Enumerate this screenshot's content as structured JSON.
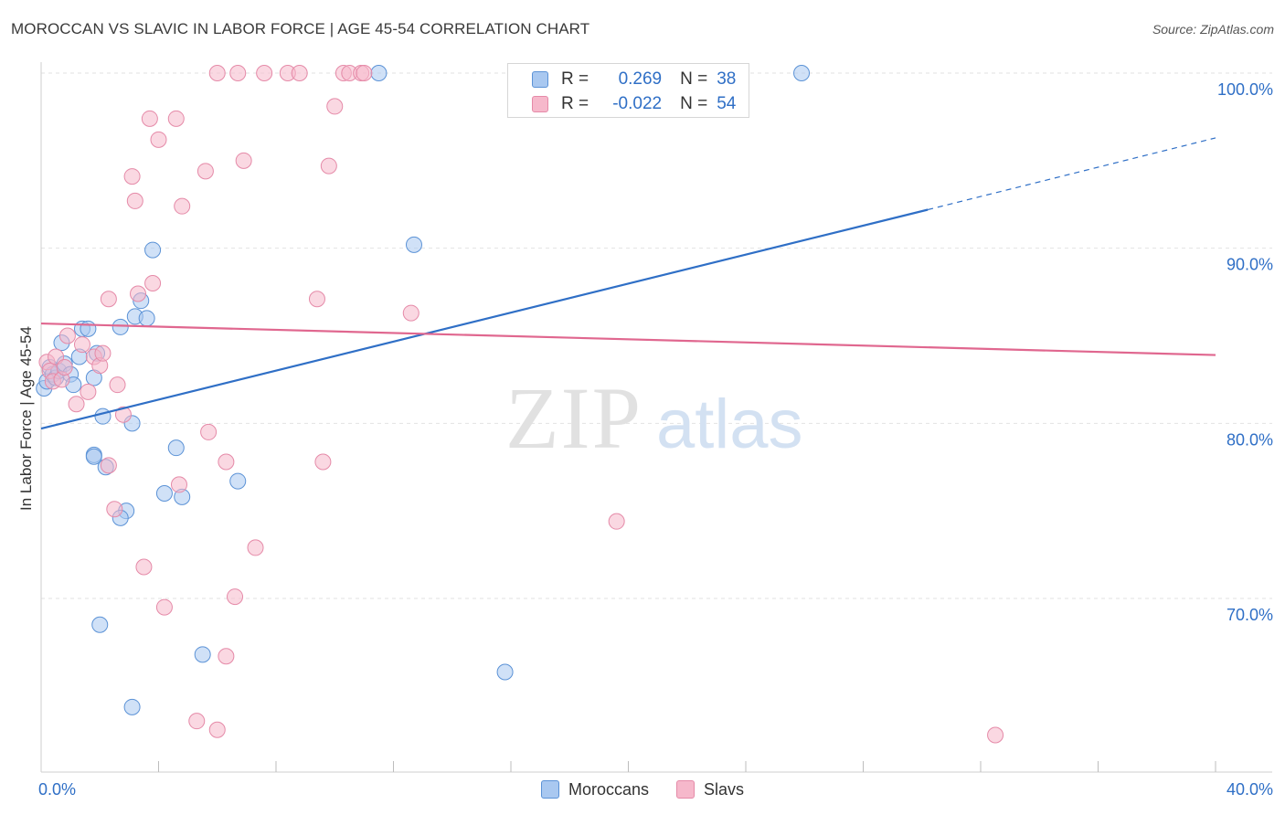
{
  "header": {
    "title": "MOROCCAN VS SLAVIC IN LABOR FORCE | AGE 45-54 CORRELATION CHART",
    "source": "Source: ZipAtlas.com"
  },
  "watermark": {
    "zip": "ZIP",
    "atlas": "atlas"
  },
  "legend": {
    "rows": [
      {
        "r_key": "R =",
        "r_value": "0.269",
        "n_key": "N =",
        "n_value": "38",
        "color": "#a9c8f0"
      },
      {
        "r_key": "R =",
        "r_value": "-0.022",
        "n_key": "N =",
        "n_value": "54",
        "color": "#f6b8cb"
      }
    ]
  },
  "bottom_legend": {
    "moroccans": "Moroccans",
    "slavs": "Slavs"
  },
  "chart_data": {
    "type": "scatter",
    "title": "MOROCCAN VS SLAVIC IN LABOR FORCE | AGE 45-54 CORRELATION CHART",
    "xlabel": "",
    "ylabel": "In Labor Force | Age 45-54",
    "xlim": [
      0,
      40
    ],
    "ylim": [
      60.5,
      101.5
    ],
    "x_tick_labels": [
      {
        "value": 0,
        "label": "0.0%"
      },
      {
        "value": 40,
        "label": "40.0%"
      }
    ],
    "y_tick_labels": [
      {
        "value": 100,
        "label": "100.0%"
      },
      {
        "value": 90,
        "label": "90.0%"
      },
      {
        "value": 80,
        "label": "80.0%"
      },
      {
        "value": 70,
        "label": "70.0%"
      }
    ],
    "y_gridlines": [
      70,
      80,
      90,
      100
    ],
    "x_ticks": [
      0,
      4,
      8,
      12,
      16,
      20,
      24,
      28,
      32,
      36,
      40
    ],
    "series": [
      {
        "name": "Moroccans",
        "color": "#2f6fc6",
        "fill": "#a9c8f0",
        "stroke": "#5b92d6",
        "r": 0.269,
        "n": 38,
        "trend": {
          "x0": 0,
          "y0": 79.7,
          "x1": 30.2,
          "y1": 92.2,
          "dash_to_x": 40,
          "dash_to_y": 96.3
        },
        "points": [
          [
            0.1,
            82.0
          ],
          [
            0.2,
            82.4
          ],
          [
            0.3,
            83.2
          ],
          [
            0.4,
            82.8
          ],
          [
            0.5,
            82.6
          ],
          [
            0.6,
            83.0
          ],
          [
            0.7,
            84.6
          ],
          [
            0.8,
            83.4
          ],
          [
            1.0,
            82.8
          ],
          [
            1.1,
            82.2
          ],
          [
            1.3,
            83.8
          ],
          [
            1.4,
            85.4
          ],
          [
            1.6,
            85.4
          ],
          [
            1.8,
            82.6
          ],
          [
            1.9,
            84.0
          ],
          [
            2.1,
            80.4
          ],
          [
            2.2,
            77.5
          ],
          [
            1.8,
            78.2
          ],
          [
            2.7,
            85.5
          ],
          [
            2.9,
            75.0
          ],
          [
            3.1,
            80.0
          ],
          [
            3.2,
            86.1
          ],
          [
            3.4,
            87.0
          ],
          [
            3.6,
            86.0
          ],
          [
            3.8,
            89.9
          ],
          [
            4.2,
            76.0
          ],
          [
            4.6,
            78.6
          ],
          [
            4.8,
            75.8
          ],
          [
            5.5,
            66.8
          ],
          [
            6.7,
            76.7
          ],
          [
            2.0,
            68.5
          ],
          [
            3.1,
            63.8
          ],
          [
            1.8,
            78.1
          ],
          [
            2.7,
            74.6
          ],
          [
            12.7,
            90.2
          ],
          [
            15.8,
            65.8
          ],
          [
            11.5,
            100.0
          ],
          [
            25.9,
            100.0
          ]
        ]
      },
      {
        "name": "Slavs",
        "color": "#e0678f",
        "fill": "#f6b8cb",
        "stroke": "#e58aa8",
        "r": -0.022,
        "n": 54,
        "trend": {
          "x0": 0,
          "y0": 85.7,
          "x1": 40,
          "y1": 83.9
        },
        "points": [
          [
            0.2,
            83.5
          ],
          [
            0.3,
            83.0
          ],
          [
            0.4,
            82.4
          ],
          [
            0.5,
            83.8
          ],
          [
            0.7,
            82.5
          ],
          [
            0.8,
            83.2
          ],
          [
            0.9,
            85.0
          ],
          [
            1.2,
            81.1
          ],
          [
            1.4,
            84.5
          ],
          [
            1.6,
            81.8
          ],
          [
            1.8,
            83.8
          ],
          [
            2.0,
            83.3
          ],
          [
            2.1,
            84.0
          ],
          [
            2.3,
            77.6
          ],
          [
            2.3,
            87.1
          ],
          [
            2.6,
            82.2
          ],
          [
            2.8,
            80.5
          ],
          [
            2.5,
            75.1
          ],
          [
            3.1,
            94.1
          ],
          [
            3.2,
            92.7
          ],
          [
            3.3,
            87.4
          ],
          [
            3.5,
            71.8
          ],
          [
            3.7,
            97.4
          ],
          [
            3.8,
            88.0
          ],
          [
            4.0,
            96.2
          ],
          [
            4.2,
            69.5
          ],
          [
            4.6,
            97.4
          ],
          [
            4.7,
            76.5
          ],
          [
            4.8,
            92.4
          ],
          [
            5.3,
            63.0
          ],
          [
            5.6,
            94.4
          ],
          [
            5.7,
            79.5
          ],
          [
            6.0,
            62.5
          ],
          [
            6.3,
            66.7
          ],
          [
            6.3,
            77.8
          ],
          [
            6.6,
            70.1
          ],
          [
            6.9,
            95.0
          ],
          [
            7.3,
            72.9
          ],
          [
            9.4,
            87.1
          ],
          [
            9.6,
            77.8
          ],
          [
            9.8,
            94.7
          ],
          [
            10.0,
            98.1
          ],
          [
            12.6,
            86.3
          ],
          [
            19.6,
            74.4
          ],
          [
            32.5,
            62.2
          ],
          [
            6.0,
            100.0
          ],
          [
            6.7,
            100.0
          ],
          [
            7.6,
            100.0
          ],
          [
            8.4,
            100.0
          ],
          [
            8.8,
            100.0
          ],
          [
            10.3,
            100.0
          ],
          [
            10.5,
            100.0
          ],
          [
            10.9,
            100.0
          ],
          [
            11.0,
            100.0
          ]
        ]
      }
    ]
  }
}
